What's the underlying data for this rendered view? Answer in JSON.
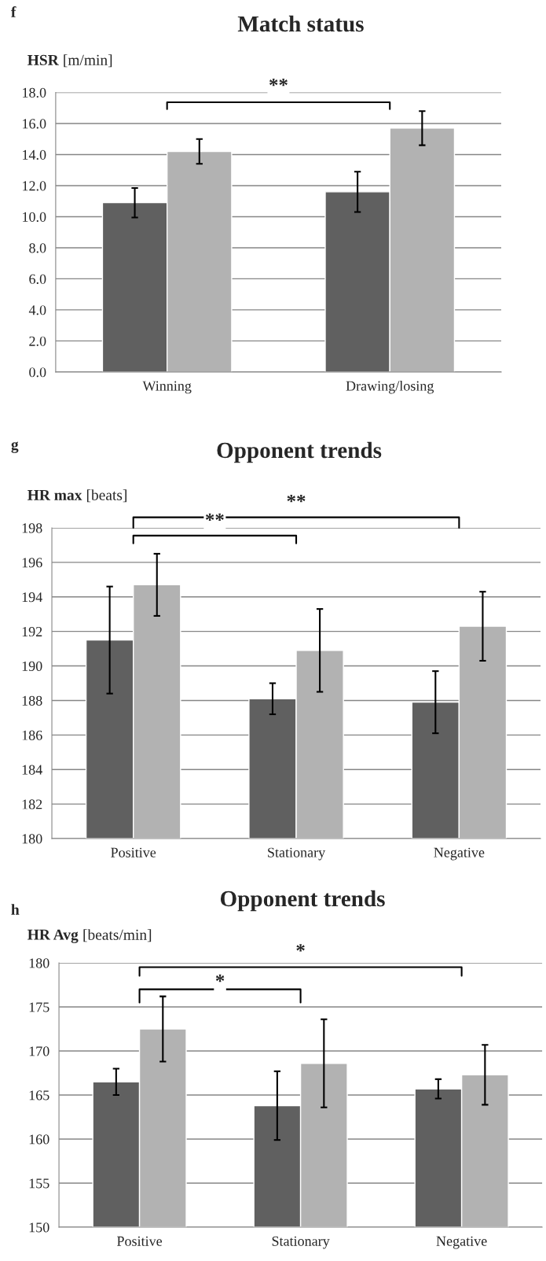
{
  "chart_data": [
    {
      "type": "bar",
      "title": "Match status",
      "ylabel": "HSR [m/min]",
      "annotations": [
        "f",
        "**"
      ],
      "categories": [
        "Winning",
        "Drawing/losing"
      ],
      "series": [
        {
          "color": "#606060",
          "values": [
            10.9,
            11.6
          ],
          "errors": [
            0.95,
            1.3
          ]
        },
        {
          "color": "#b2b2b2",
          "values": [
            14.2,
            15.7
          ],
          "errors": [
            0.8,
            1.1
          ]
        }
      ],
      "ylim": [
        0,
        18
      ],
      "yticks": [
        {
          "value": 0,
          "label": "0.0"
        },
        {
          "value": 2,
          "label": "2.0"
        },
        {
          "value": 4,
          "label": "4.0"
        },
        {
          "value": 6,
          "label": "6.0"
        },
        {
          "value": 8,
          "label": "8.0"
        },
        {
          "value": 10,
          "label": "10.0"
        },
        {
          "value": 12,
          "label": "12.0"
        },
        {
          "value": 14,
          "label": "14.0"
        },
        {
          "value": 16,
          "label": "16.0"
        },
        {
          "value": 18,
          "label": "18.0"
        }
      ],
      "grid": "y"
    },
    {
      "type": "bar",
      "title": "Opponent trends",
      "ylabel": "HR max [beats]",
      "annotations": [
        "g",
        "**",
        "**"
      ],
      "categories": [
        "Positive",
        "Stationary",
        "Negative"
      ],
      "series": [
        {
          "color": "#606060",
          "values": [
            191.5,
            188.1,
            187.9
          ],
          "errors": [
            3.1,
            0.9,
            1.8
          ]
        },
        {
          "color": "#b2b2b2",
          "values": [
            194.7,
            190.9,
            192.3
          ],
          "errors": [
            1.8,
            2.4,
            2.0
          ]
        }
      ],
      "ylim": [
        180,
        198
      ],
      "yticks": [
        180,
        182,
        184,
        186,
        188,
        190,
        192,
        194,
        196,
        198
      ],
      "grid": "y"
    },
    {
      "type": "bar",
      "title": "Opponent trends",
      "ylabel": "HR Avg [beats/min]",
      "annotations": [
        "h",
        "*",
        "*"
      ],
      "categories": [
        "Positive",
        "Stationary",
        "Negative"
      ],
      "series": [
        {
          "color": "#606060",
          "values": [
            166.5,
            163.8,
            165.7
          ],
          "errors": [
            1.5,
            3.9,
            1.1
          ]
        },
        {
          "color": "#b2b2b2",
          "values": [
            172.5,
            168.6,
            167.3
          ],
          "errors": [
            3.7,
            5.0,
            3.4
          ]
        }
      ],
      "ylim": [
        150,
        180
      ],
      "yticks": [
        150,
        155,
        160,
        165,
        170,
        175,
        180
      ],
      "grid": "y"
    }
  ]
}
